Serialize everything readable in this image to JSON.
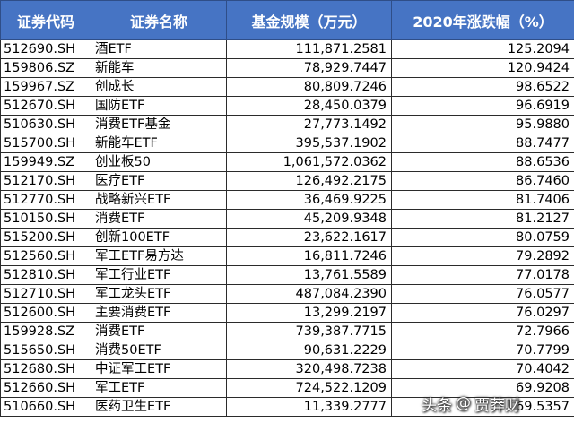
{
  "table": {
    "headers": [
      "证券代码",
      "证券名称",
      "基金规模（万元）",
      "2020年涨跌幅（%）"
    ],
    "rows": [
      {
        "code": "512690.SH",
        "name": "酒ETF",
        "scale": "111,871.2581",
        "change": "125.2094"
      },
      {
        "code": "159806.SZ",
        "name": "新能车",
        "scale": "78,929.7447",
        "change": "120.9424"
      },
      {
        "code": "159967.SZ",
        "name": "创成长",
        "scale": "80,809.7246",
        "change": "98.6522"
      },
      {
        "code": "512670.SH",
        "name": "国防ETF",
        "scale": "28,450.0379",
        "change": "96.6919"
      },
      {
        "code": "510630.SH",
        "name": "消费ETF基金",
        "scale": "27,773.1492",
        "change": "95.9880"
      },
      {
        "code": "515700.SH",
        "name": "新能车ETF",
        "scale": "395,537.1902",
        "change": "88.7477"
      },
      {
        "code": "159949.SZ",
        "name": "创业板50",
        "scale": "1,061,572.0362",
        "change": "88.6536"
      },
      {
        "code": "512170.SH",
        "name": "医疗ETF",
        "scale": "126,492.2175",
        "change": "86.7460"
      },
      {
        "code": "512770.SH",
        "name": "战略新兴ETF",
        "scale": "36,469.9225",
        "change": "81.7406"
      },
      {
        "code": "510150.SH",
        "name": "消费ETF",
        "scale": "45,209.9348",
        "change": "81.2127"
      },
      {
        "code": "515200.SH",
        "name": "创新100ETF",
        "scale": "23,622.1617",
        "change": "80.0759"
      },
      {
        "code": "512560.SH",
        "name": "军工ETF易方达",
        "scale": "16,811.7246",
        "change": "79.2892"
      },
      {
        "code": "512810.SH",
        "name": "军工行业ETF",
        "scale": "13,761.5589",
        "change": "77.0178"
      },
      {
        "code": "512710.SH",
        "name": "军工龙头ETF",
        "scale": "487,084.2390",
        "change": "76.0577"
      },
      {
        "code": "512600.SH",
        "name": "主要消费ETF",
        "scale": "13,299.2197",
        "change": "76.0297"
      },
      {
        "code": "159928.SZ",
        "name": "消费ETF",
        "scale": "739,387.7715",
        "change": "72.7966"
      },
      {
        "code": "515650.SH",
        "name": "消费50ETF",
        "scale": "90,631.2229",
        "change": "70.7799"
      },
      {
        "code": "512680.SH",
        "name": "中证军工ETF",
        "scale": "320,498.7238",
        "change": "70.4042"
      },
      {
        "code": "512660.SH",
        "name": "军工ETF",
        "scale": "724,522.1209",
        "change": "69.9208"
      },
      {
        "code": "510660.SH",
        "name": "医药卫生ETF",
        "scale": "11,339.2777",
        "change": "69.5357"
      }
    ]
  },
  "watermark": {
    "platform": "头条",
    "separator": "@",
    "author": "贾莽财"
  },
  "colors": {
    "header_bg": "#4674c4",
    "header_text": "#ffffff",
    "cell_border": "#2b2b2b"
  }
}
